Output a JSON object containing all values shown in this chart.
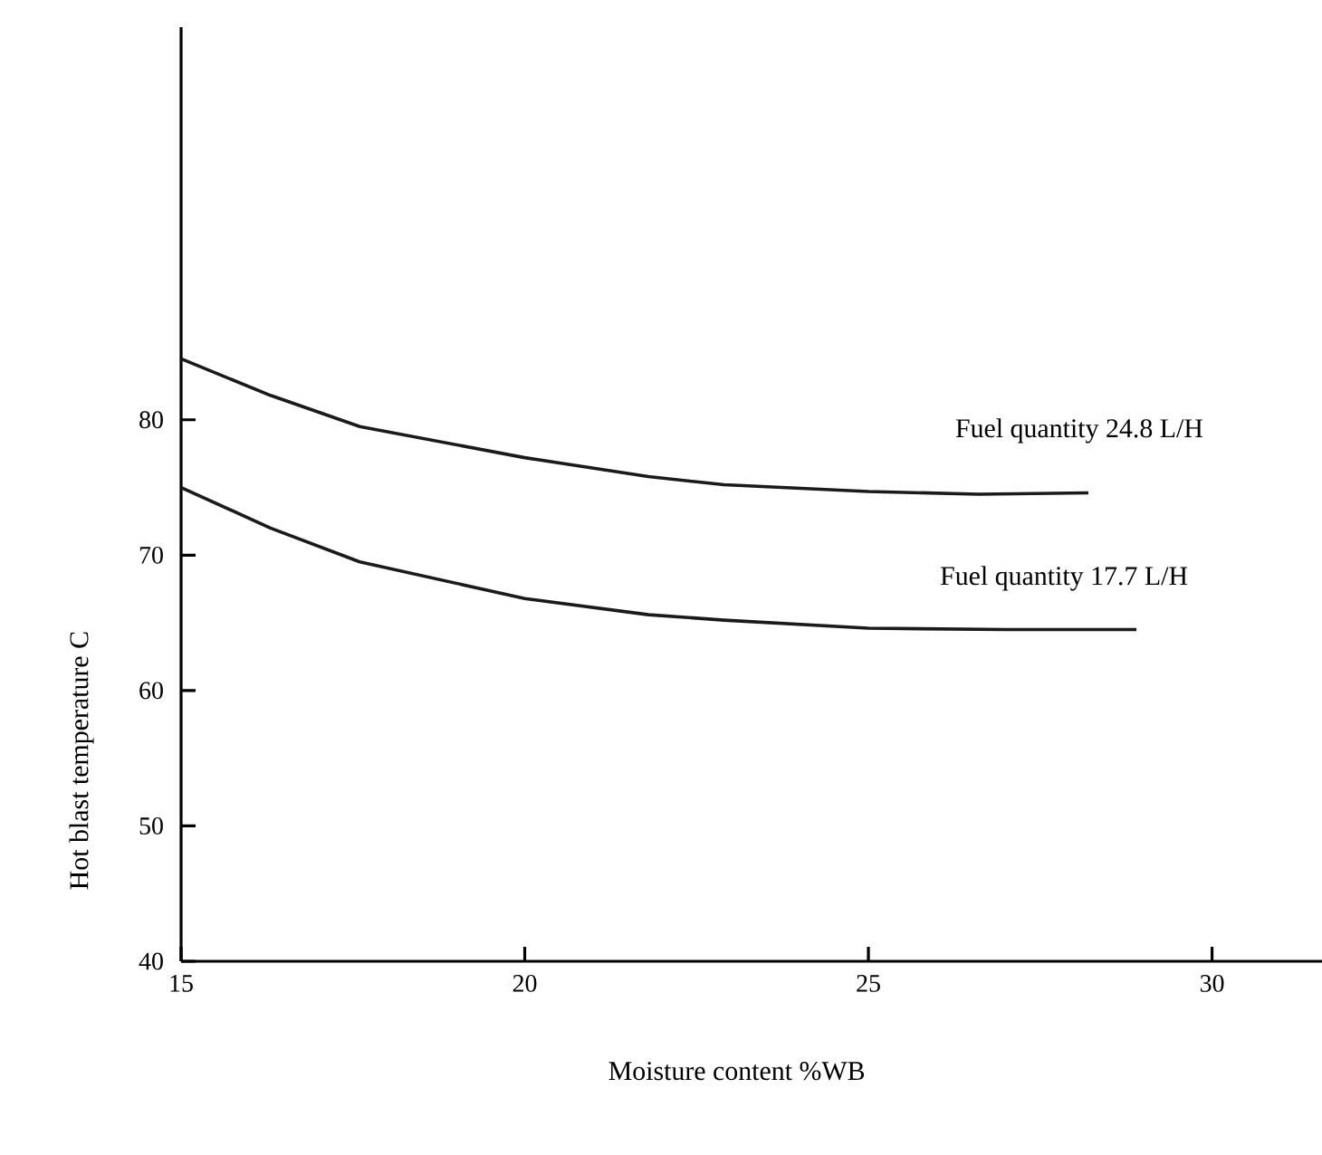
{
  "chart_data": {
    "type": "line",
    "xlabel": "Moisture content   %WB",
    "ylabel": "Hot blast temperature C",
    "xlim": [
      15,
      31.6
    ],
    "ylim": [
      40,
      109
    ],
    "xticks": [
      15,
      20,
      25,
      30
    ],
    "yticks": [
      40,
      50,
      60,
      70,
      80
    ],
    "grid": false,
    "legend": false,
    "marker": "none",
    "line_style": "solid",
    "series": [
      {
        "name": "Fuel quantity 24.8 L/H",
        "color": "#1a1a1a",
        "x": [
          15,
          16.3,
          17.6,
          20,
          21.8,
          22.9,
          25,
          26.6,
          28.2
        ],
        "values": [
          84.5,
          81.8,
          79.5,
          77.2,
          75.8,
          75.2,
          74.7,
          74.5,
          74.6
        ]
      },
      {
        "name": "Fuel quantity 17.7 L/H",
        "color": "#1a1a1a",
        "x": [
          15,
          16.3,
          17.6,
          20,
          21.8,
          22.9,
          25,
          27,
          28.9
        ],
        "values": [
          75,
          72,
          69.5,
          66.8,
          65.6,
          65.2,
          64.6,
          64.5,
          64.5
        ]
      }
    ]
  }
}
